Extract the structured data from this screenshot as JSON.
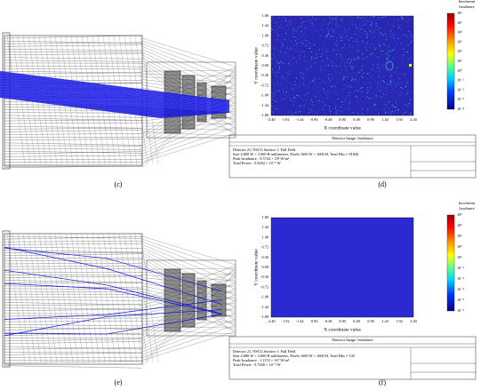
{
  "panels": {
    "c": "(c)",
    "d": "(d)",
    "e": "(e)",
    "f": "(f)"
  },
  "detectors": [
    {
      "y_axis_label": "Y coordinate value",
      "x_axis_label": "X coordinate value",
      "yticks": [
        "1.80",
        "1.44",
        "1.08",
        "0.72",
        "0.36",
        "0.00",
        "-0.36",
        "-0.72",
        "-1.08",
        "-1.44",
        "-1.80"
      ],
      "xticks": [
        "-2.40",
        "-1.92",
        "-1.44",
        "-0.96",
        "-0.48",
        "0.00",
        "0.48",
        "0.96",
        "1.44",
        "1.92",
        "2.40"
      ],
      "colorbar_title": [
        "Incoherent",
        "Irradiance"
      ],
      "colorbar_labels": [
        "10⁶",
        "10⁵",
        "10⁴",
        "10³",
        "10²",
        "10¹",
        "10⁰",
        "10⁻¹",
        "10⁻²",
        "10⁻³",
        "10⁻⁴"
      ],
      "table": {
        "caption": "Detector Image: Irradiance",
        "lines": [
          "Detector 21, NSCG Surface 1: Full Field",
          "Size 4.800 W × 3.600 H millimeters, Pixels 1600 W × 1600 H, Total Hits = 81826",
          "Peak Irradiance : 9.5724 × 10⁵ W/m²",
          "Total Power     : 5.8202 × 10⁻⁶ W"
        ]
      }
    },
    {
      "y_axis_label": "Y coordinate value",
      "x_axis_label": "X coordinate value",
      "yticks": [
        "1.80",
        "1.44",
        "1.08",
        "0.72",
        "0.36",
        "0.00",
        "-0.36",
        "-0.72",
        "-1.08",
        "-1.44",
        "-1.80"
      ],
      "xticks": [
        "-2.40",
        "-1.92",
        "-1.44",
        "-0.96",
        "-0.48",
        "0.00",
        "0.48",
        "0.96",
        "1.44",
        "1.92",
        "2.40"
      ],
      "colorbar_title": [
        "Incoherent",
        "Irradiance"
      ],
      "colorbar_labels": [
        "10⁶",
        "10⁵",
        "10³",
        "10²",
        "10¹",
        "10⁻¹",
        "10⁻²",
        "10⁻³",
        "10⁻⁵",
        "10⁻⁶"
      ],
      "table": {
        "caption": "Detector Image: Irradiance",
        "lines": [
          "Detector 21, NSCG Surface 1: Full Field",
          "Size 4.800 W × 3.600 H millimeters, Pixels 1600 W × 1600 H, Total Hits = 145",
          "Peak Irradiance : 1.1153 × 10⁷ W/m²",
          "Total Power     : 9.7440 × 10⁻⁹ W"
        ]
      }
    }
  ]
}
